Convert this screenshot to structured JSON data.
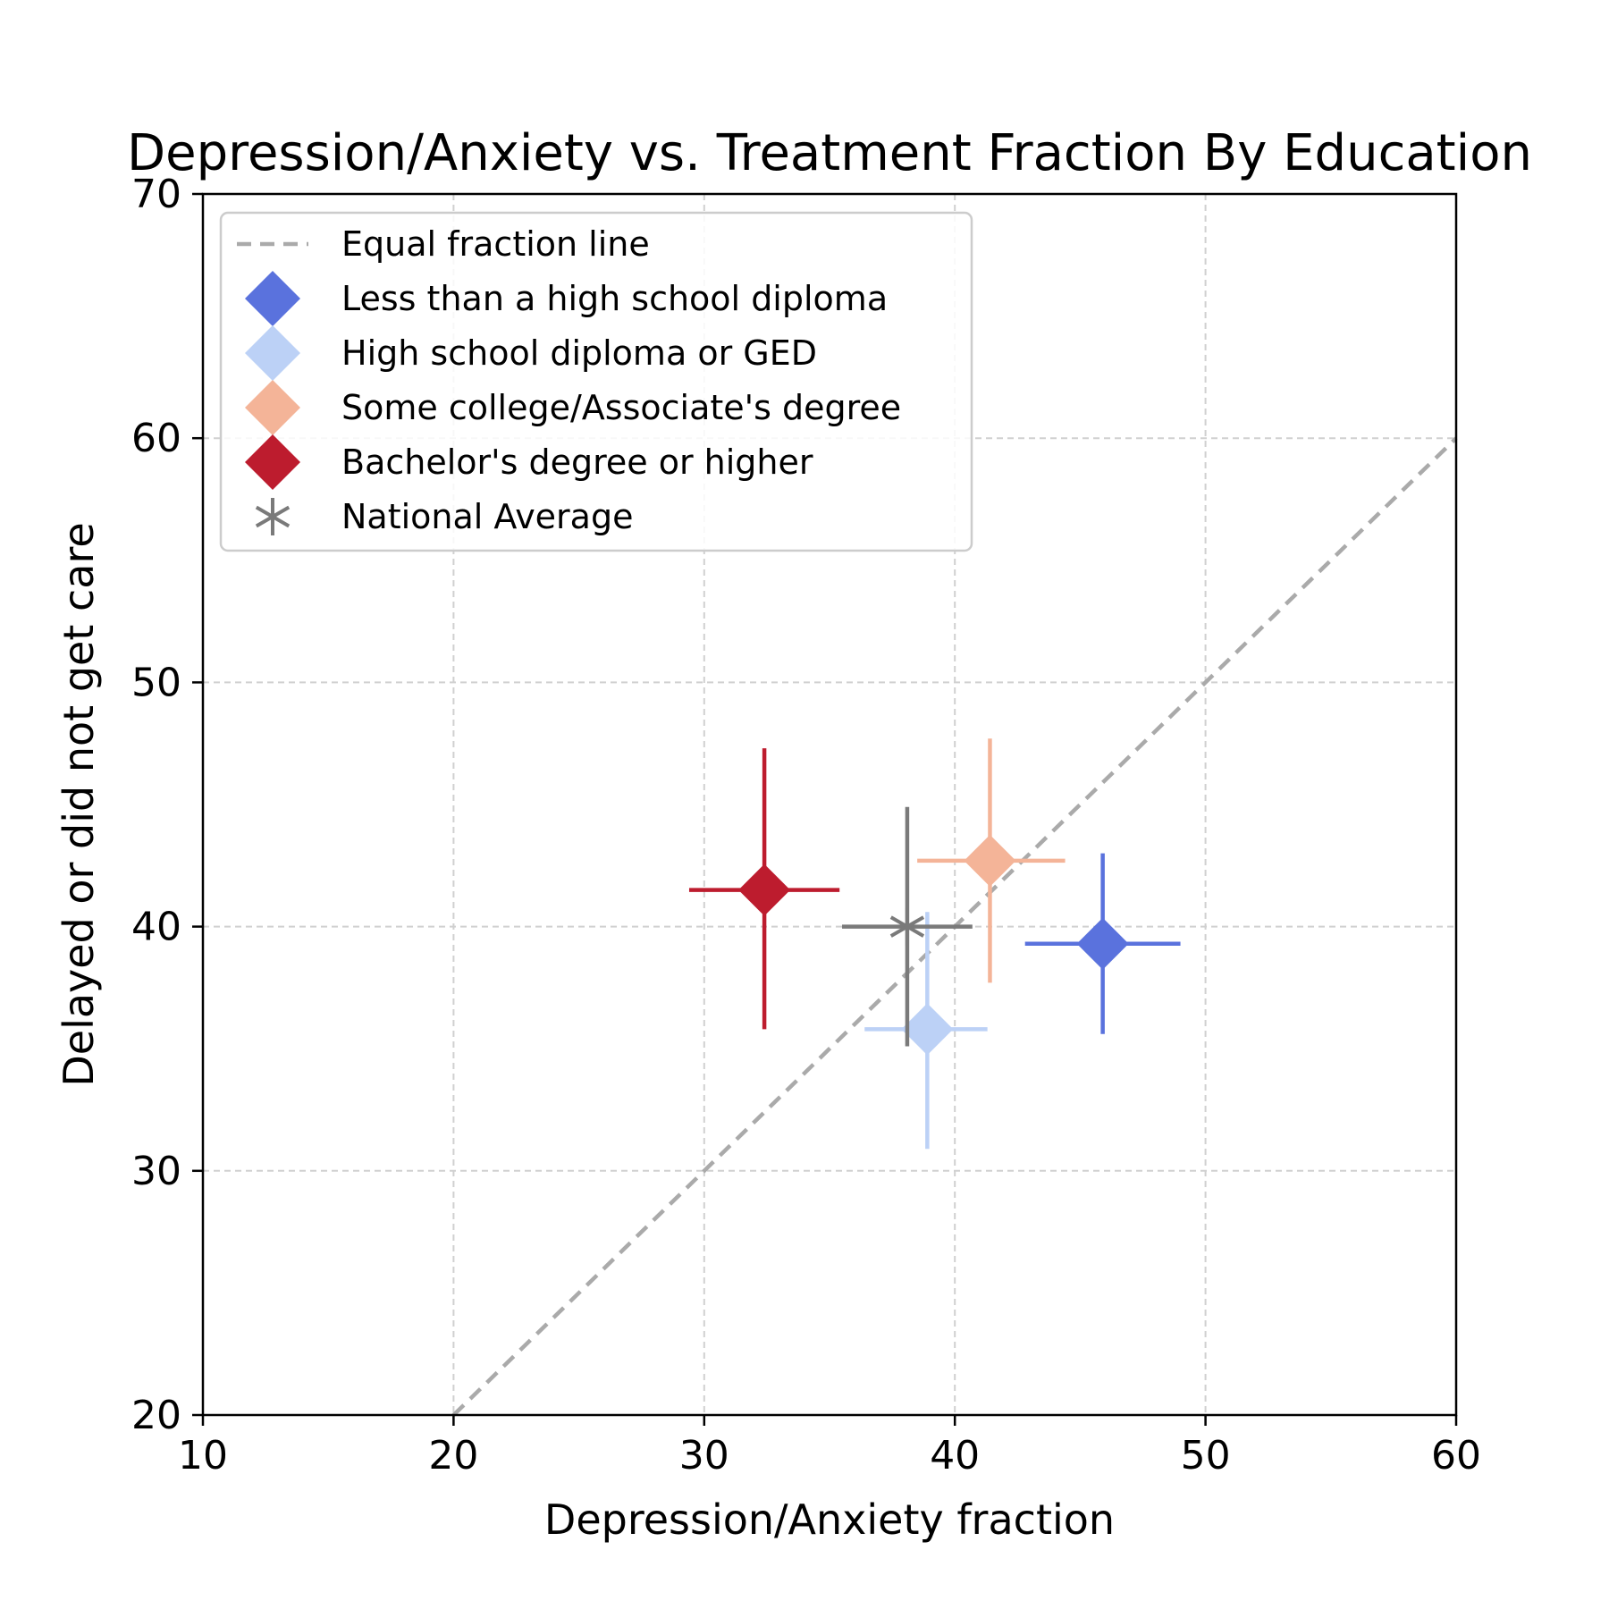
{
  "chart_data": {
    "type": "scatter",
    "title": "Depression/Anxiety vs. Treatment Fraction By Education",
    "xlabel": "Depression/Anxiety fraction",
    "ylabel": "Delayed or did not get care",
    "xlim": [
      10,
      60
    ],
    "ylim": [
      20,
      70
    ],
    "xticks": [
      "10",
      "20",
      "30",
      "40",
      "50",
      "60"
    ],
    "yticks": [
      "20",
      "30",
      "40",
      "50",
      "60",
      "70"
    ],
    "grid": true,
    "legend_position": "upper-left",
    "reference_line": {
      "name": "Equal fraction line",
      "x": [
        20,
        60
      ],
      "y": [
        20,
        60
      ],
      "color": "#aaaaaa",
      "style": "dashed"
    },
    "series": [
      {
        "name": "Less than a high school diploma",
        "x": 45.9,
        "y": 39.3,
        "xerr": [
          42.8,
          49.0
        ],
        "yerr": [
          35.6,
          43.0
        ],
        "color": "#5a72dd",
        "marker": "diamond"
      },
      {
        "name": "High school diploma or GED",
        "x": 38.9,
        "y": 35.8,
        "xerr": [
          36.4,
          41.3
        ],
        "yerr": [
          30.9,
          40.6
        ],
        "color": "#bcd1f6",
        "marker": "diamond"
      },
      {
        "name": "Some college/Associate's degree",
        "x": 41.4,
        "y": 42.7,
        "xerr": [
          38.5,
          44.4
        ],
        "yerr": [
          37.7,
          47.7
        ],
        "color": "#f4b498",
        "marker": "diamond"
      },
      {
        "name": "Bachelor's degree or higher",
        "x": 32.4,
        "y": 41.5,
        "xerr": [
          29.4,
          35.4
        ],
        "yerr": [
          35.8,
          47.3
        ],
        "color": "#bd1c2e",
        "marker": "diamond"
      },
      {
        "name": "National Average",
        "x": 38.1,
        "y": 40.0,
        "xerr": [
          35.5,
          40.7
        ],
        "yerr": [
          35.1,
          44.9
        ],
        "color": "#7a7a7a",
        "marker": "asterisk"
      }
    ]
  }
}
